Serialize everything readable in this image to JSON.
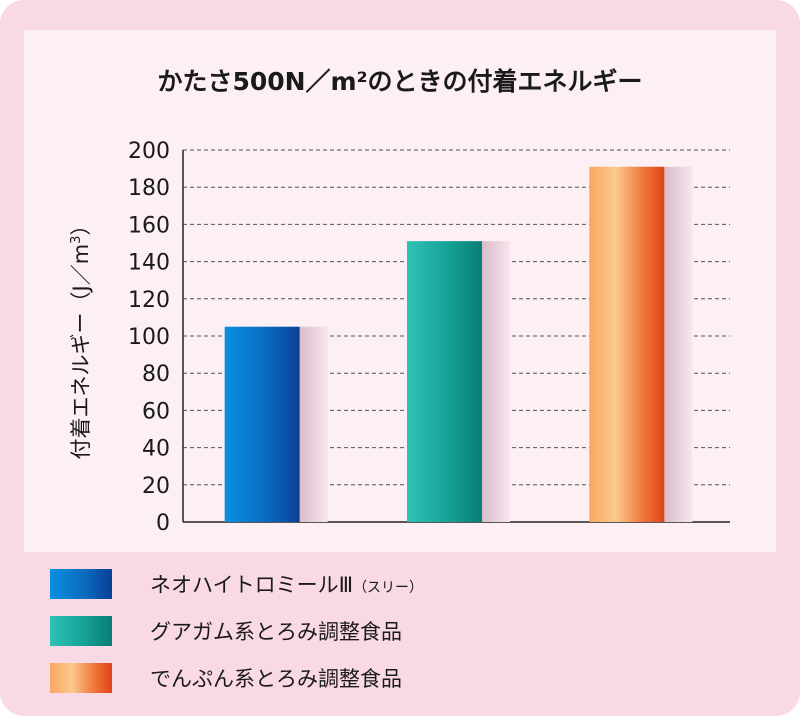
{
  "chart_data": {
    "type": "bar",
    "title": "かたさ500N／m²のときの付着エネルギー",
    "ylabel_main": "付着エネルギー（J／m",
    "ylabel_sup": "3",
    "ylabel_close": "）",
    "ylim": [
      0,
      200
    ],
    "yticks": [
      0,
      20,
      40,
      60,
      80,
      100,
      120,
      140,
      160,
      180,
      200
    ],
    "grid": true,
    "legend_position": "bottom",
    "series": [
      {
        "name": "ネオハイトロミールⅢ（スリー）",
        "value": 105,
        "color": "#0a6fc4"
      },
      {
        "name": "グアガム系とろみ調整食品",
        "value": 151,
        "color": "#16a196"
      },
      {
        "name": "でんぷん系とろみ調整食品",
        "value": 191,
        "color": "#f07a3a"
      }
    ]
  },
  "legend": {
    "item1_main": "ネオハイトロミールⅢ",
    "item1_small": "（スリー）",
    "item2": "グアガム系とろみ調整食品",
    "item3": "でんぷん系とろみ調整食品"
  }
}
